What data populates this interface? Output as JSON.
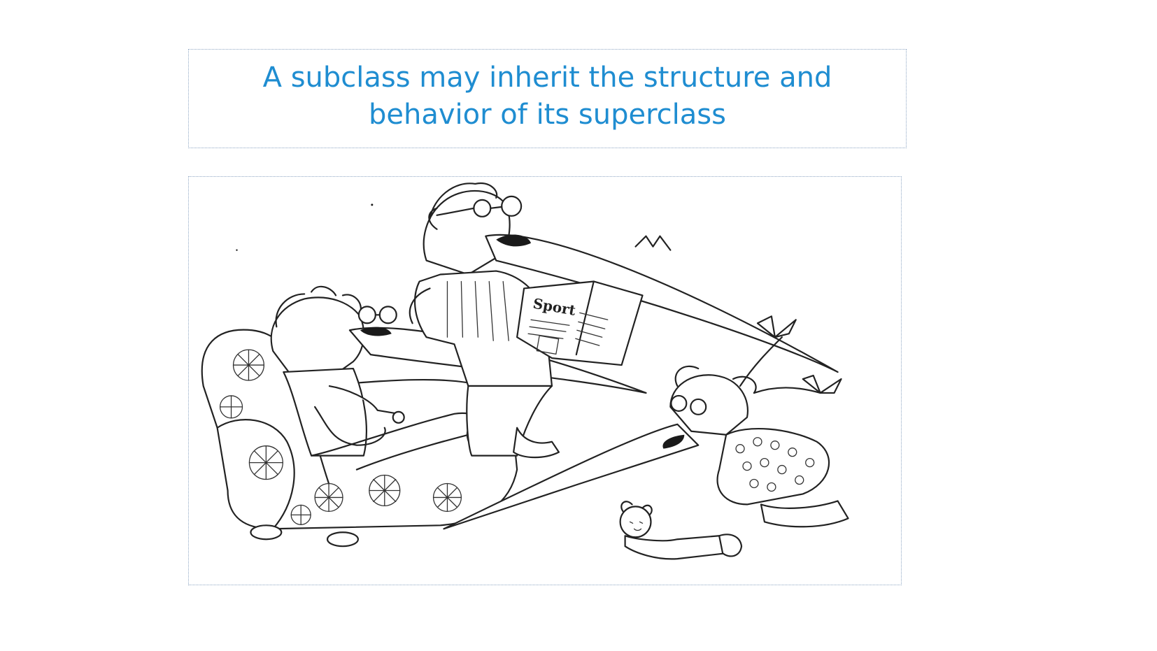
{
  "slide": {
    "title": "A subclass may inherit the structure and behavior of its superclass"
  },
  "illustration": {
    "newspaper_text": "Sport"
  }
}
